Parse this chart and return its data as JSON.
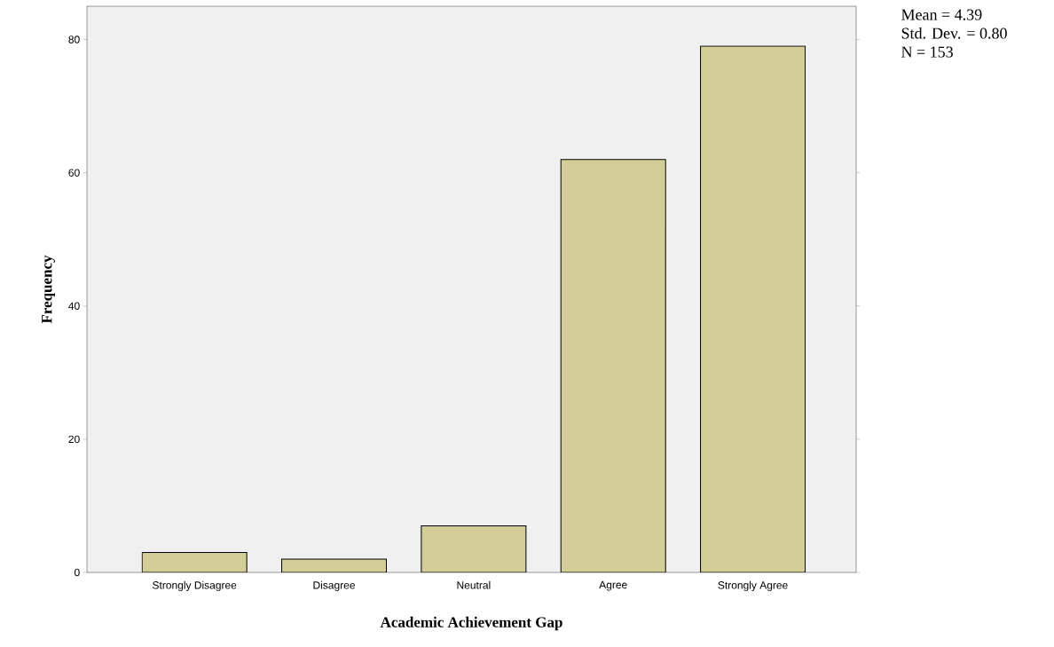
{
  "chart_data": {
    "type": "bar",
    "xlabel": "Academic Achievement Gap",
    "ylabel": "Frequency",
    "categories": [
      "Strongly Disagree",
      "Disagree",
      "Neutral",
      "Agree",
      "Strongly Agree"
    ],
    "values": [
      3,
      2,
      7,
      62,
      79
    ],
    "color": "#d3ce97",
    "ylim": [
      0,
      85
    ],
    "yticks": [
      0,
      20,
      40,
      60,
      80
    ],
    "grid": false,
    "annotations": [
      "Mean = 4.39",
      "Std. Dev. =  0.80",
      "N = 153"
    ]
  }
}
